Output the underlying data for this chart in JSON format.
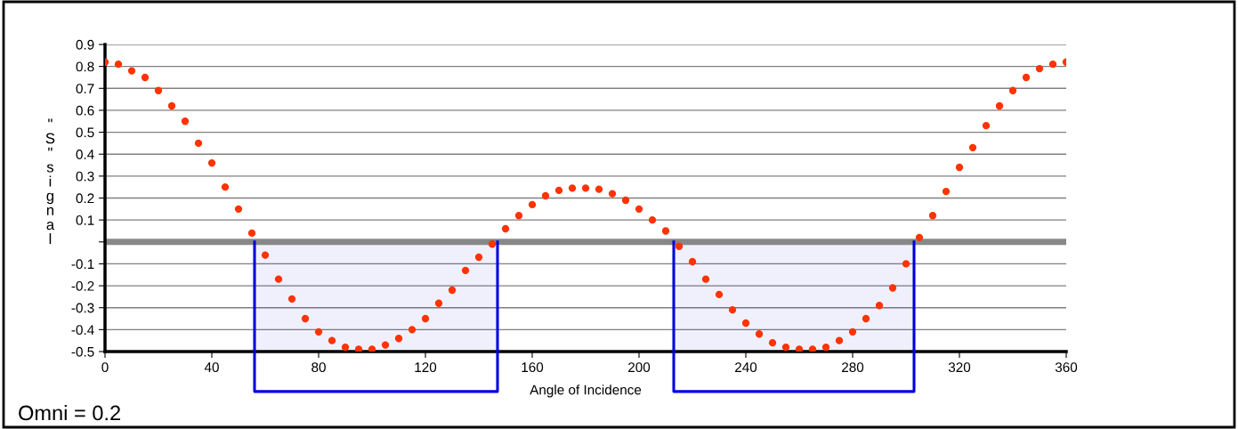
{
  "chart_data": {
    "type": "scatter",
    "x": [
      0,
      5,
      10,
      15,
      20,
      25,
      30,
      35,
      40,
      45,
      50,
      55,
      60,
      65,
      70,
      75,
      80,
      85,
      90,
      95,
      100,
      105,
      110,
      115,
      120,
      125,
      130,
      135,
      140,
      145,
      150,
      155,
      160,
      165,
      170,
      175,
      180,
      185,
      190,
      195,
      200,
      205,
      210,
      215,
      220,
      225,
      230,
      235,
      240,
      245,
      250,
      255,
      260,
      265,
      270,
      275,
      280,
      285,
      290,
      295,
      300,
      305,
      310,
      315,
      320,
      325,
      330,
      335,
      340,
      345,
      350,
      355,
      360
    ],
    "series": [
      {
        "color": "#ff3300",
        "values": [
          0.82,
          0.81,
          0.78,
          0.75,
          0.69,
          0.62,
          0.55,
          0.45,
          0.36,
          0.25,
          0.15,
          0.04,
          -0.06,
          -0.17,
          -0.26,
          -0.35,
          -0.41,
          -0.45,
          -0.48,
          -0.49,
          -0.49,
          -0.47,
          -0.44,
          -0.4,
          -0.35,
          -0.28,
          -0.22,
          -0.13,
          -0.07,
          -0.01,
          0.06,
          0.12,
          0.17,
          0.21,
          0.235,
          0.245,
          0.245,
          0.24,
          0.22,
          0.19,
          0.15,
          0.1,
          0.05,
          -0.02,
          -0.09,
          -0.17,
          -0.24,
          -0.31,
          -0.37,
          -0.42,
          -0.46,
          -0.48,
          -0.49,
          -0.49,
          -0.48,
          -0.45,
          -0.41,
          -0.35,
          -0.29,
          -0.21,
          -0.1,
          0.02,
          0.12,
          0.23,
          0.34,
          0.43,
          0.53,
          0.62,
          0.69,
          0.75,
          0.79,
          0.81,
          0.82
        ]
      }
    ],
    "marker": "circle",
    "xlabel": "Angle of Incidence",
    "ylabel": "\"S\" signal",
    "xlim": [
      0,
      360
    ],
    "xticks": [
      0,
      40,
      80,
      120,
      160,
      200,
      240,
      280,
      320,
      360
    ],
    "ylim": [
      -0.5,
      0.9
    ],
    "yticks": [
      -0.5,
      -0.4,
      -0.3,
      -0.2,
      -0.1,
      {
        "value": 0,
        "label": null
      },
      0.1,
      0.2,
      0.3,
      0.4,
      0.5,
      0.6,
      0.7,
      0.8,
      0.9
    ],
    "grid": "y",
    "ref_lines": [
      {
        "axis": "y",
        "value": 0,
        "color": "#888888"
      }
    ],
    "bands": [
      {
        "axis": "x",
        "from": 56,
        "to": 147,
        "color": "#0000dd"
      },
      {
        "axis": "x",
        "from": 213,
        "to": 303,
        "color": "#0000dd"
      }
    ],
    "annotations": [
      "Omni = 0.2"
    ]
  }
}
